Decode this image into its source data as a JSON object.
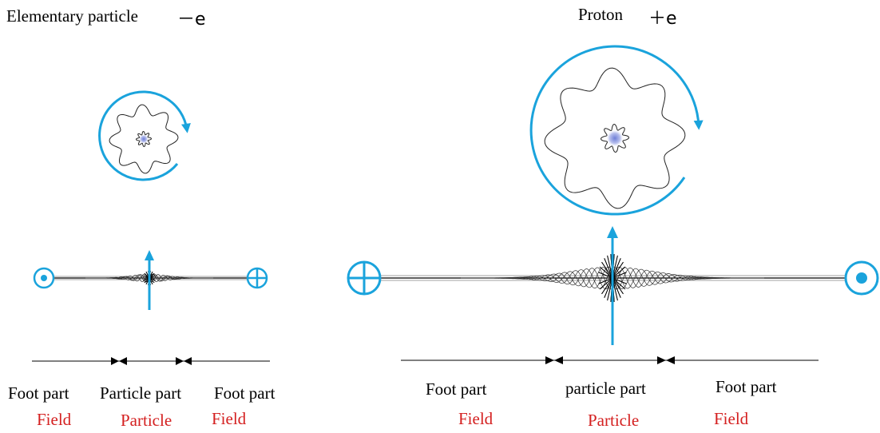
{
  "electron": {
    "title": "Elementary particle",
    "charge": "－e",
    "labels": {
      "foot_left": "Foot part",
      "particle_part": "Particle part",
      "foot_right": "Foot part",
      "field_left": "Field",
      "particle": "Particle",
      "field_right": "Field"
    }
  },
  "proton": {
    "title": "Proton",
    "charge": "＋e",
    "labels": {
      "foot_left": "Foot part",
      "particle_part": "particle part",
      "foot_right": "Foot part",
      "field_left": "Field",
      "particle": "Particle",
      "field_right": "Field"
    }
  },
  "colors": {
    "accent": "#1aa3dc",
    "field_label": "#d42020",
    "line": "#000000"
  }
}
